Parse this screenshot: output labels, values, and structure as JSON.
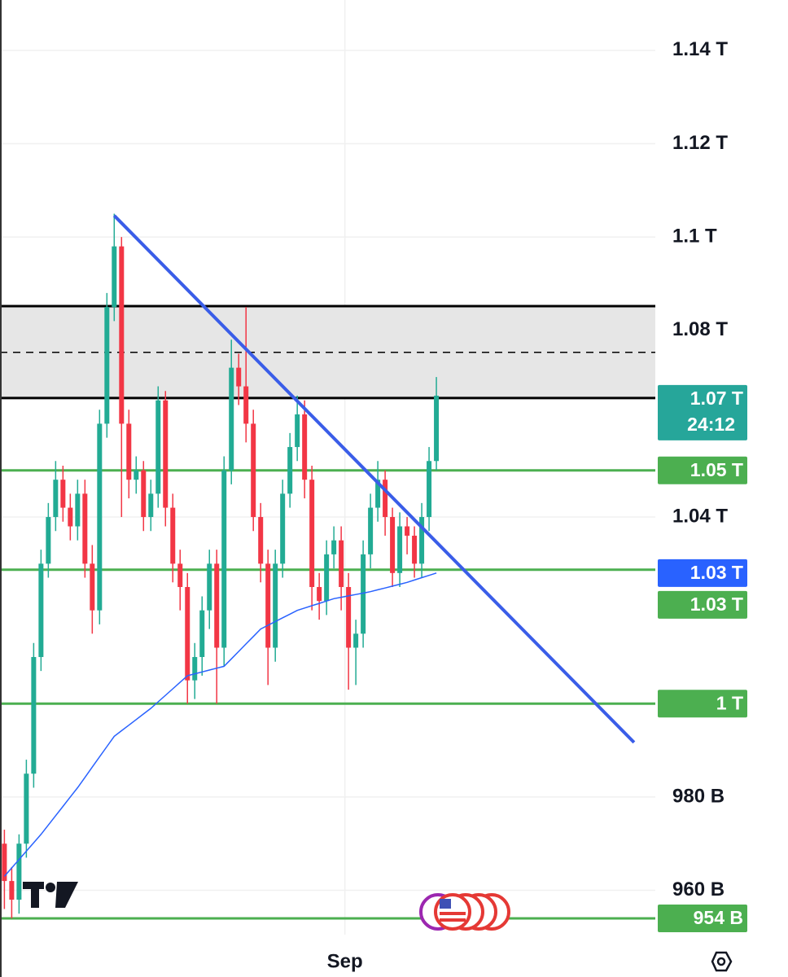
{
  "chart_data": {
    "type": "candlestick",
    "xlim": [
      -0.6,
      88.9
    ],
    "ylim": [
      950.5,
      1150.8
    ],
    "yticks": [
      {
        "value": 1140,
        "label": "1.14 T"
      },
      {
        "value": 1120,
        "label": "1.12 T"
      },
      {
        "value": 1100,
        "label": "1.1 T"
      },
      {
        "value": 1080,
        "label": "1.08 T"
      },
      {
        "value": 1040,
        "label": "1.04 T"
      },
      {
        "value": 980,
        "label": "980 B"
      },
      {
        "value": 960,
        "label": "960 B"
      }
    ],
    "xticks": [
      {
        "value": 46.5,
        "label": "Sep"
      }
    ],
    "grid": true,
    "up_color": "#22ab94",
    "down_color": "#f23645",
    "open": [
      970,
      962,
      958,
      970,
      985,
      1010,
      1030,
      1040,
      1048,
      1042,
      1038,
      1045,
      1030,
      1020,
      1060,
      1085,
      1098,
      1060,
      1048,
      1050,
      1040,
      1045,
      1065,
      1042,
      1030,
      1025,
      1005,
      1010,
      1020,
      1030,
      1012,
      1050,
      1072,
      1068,
      1060,
      1040,
      1030,
      1012,
      1030,
      1045,
      1055,
      1062,
      1048,
      1025,
      1022,
      1032,
      1035,
      1025,
      1012,
      1015,
      1032,
      1042,
      1048,
      1040,
      1028,
      1038,
      1036,
      1030,
      1040,
      1052
    ],
    "high": [
      973,
      965,
      972,
      988,
      1013,
      1033,
      1043,
      1052,
      1051,
      1045,
      1048,
      1048,
      1034,
      1063,
      1088,
      1105,
      1100,
      1063,
      1053,
      1052,
      1048,
      1068,
      1067,
      1045,
      1033,
      1028,
      1013,
      1023,
      1033,
      1033,
      1053,
      1078,
      1075,
      1085,
      1063,
      1043,
      1033,
      1033,
      1048,
      1058,
      1066,
      1065,
      1051,
      1028,
      1035,
      1038,
      1038,
      1028,
      1018,
      1035,
      1045,
      1052,
      1050,
      1042,
      1041,
      1040,
      1038,
      1043,
      1055,
      1070
    ],
    "low": [
      956,
      954,
      955,
      967,
      982,
      1007,
      1027,
      1037,
      1039,
      1035,
      1035,
      1027,
      1015,
      1017,
      1057,
      1082,
      1040,
      1044,
      1045,
      1037,
      1037,
      1042,
      1038,
      1026,
      1020,
      1000,
      1001,
      1006,
      1016,
      1000,
      1008,
      1047,
      1064,
      1056,
      1037,
      1026,
      1004,
      1009,
      1027,
      1042,
      1052,
      1044,
      1020,
      1018,
      1019,
      1029,
      1020,
      1003,
      1004,
      1012,
      1029,
      1039,
      1036,
      1025,
      1025,
      1032,
      1027,
      1027,
      1037,
      1050
    ],
    "close": [
      962,
      958,
      970,
      985,
      1010,
      1030,
      1040,
      1048,
      1042,
      1038,
      1045,
      1030,
      1020,
      1060,
      1085,
      1098,
      1060,
      1048,
      1050,
      1040,
      1045,
      1065,
      1042,
      1030,
      1025,
      1005,
      1010,
      1020,
      1030,
      1012,
      1050,
      1072,
      1068,
      1060,
      1040,
      1030,
      1012,
      1030,
      1045,
      1055,
      1062,
      1048,
      1025,
      1022,
      1032,
      1035,
      1025,
      1012,
      1015,
      1032,
      1042,
      1048,
      1040,
      1028,
      1038,
      1036,
      1030,
      1040,
      1052,
      1066
    ],
    "moving_average": {
      "color": "#2962ff",
      "values": [
        963,
        964.8,
        966.6,
        968.4,
        970.2,
        972,
        974,
        976,
        978,
        980,
        982,
        984.2,
        986.4,
        988.6,
        990.8,
        993,
        994.2,
        995.4,
        996.6,
        997.8,
        999,
        1000.4,
        1001.8,
        1003.2,
        1004.6,
        1006,
        1006.4,
        1006.8,
        1007.2,
        1007.6,
        1008,
        1009.6,
        1011.2,
        1012.8,
        1014.4,
        1016,
        1016.8,
        1017.6,
        1018.4,
        1019.2,
        1020,
        1020.5,
        1021,
        1021.5,
        1022,
        1022.5,
        1022.8,
        1023.1,
        1023.4,
        1023.7,
        1024,
        1024.4,
        1024.8,
        1025.2,
        1025.6,
        1026,
        1026.5,
        1027,
        1027.5,
        1028
      ],
      "label": {
        "value": 1028,
        "label": "1.03 T"
      }
    },
    "trendline": {
      "color": "#3a5de8",
      "x": [
        15,
        86
      ],
      "values": [
        1104.6,
        991.7
      ]
    },
    "zone": {
      "top": 1085.2,
      "bottom": 1065.5,
      "mid": 1075.3
    },
    "level_color": "#4caf50",
    "levels": [
      {
        "value": 1050,
        "label": "1.05 T"
      },
      {
        "value": 1028.7,
        "label": "1.03 T"
      },
      {
        "value": 1000,
        "label": "1 T"
      },
      {
        "value": 954,
        "label": "954 B"
      }
    ],
    "last_price": {
      "value": 1065.5,
      "label": "1.07 T",
      "countdown": "24:12",
      "color": "#26a69a"
    }
  }
}
